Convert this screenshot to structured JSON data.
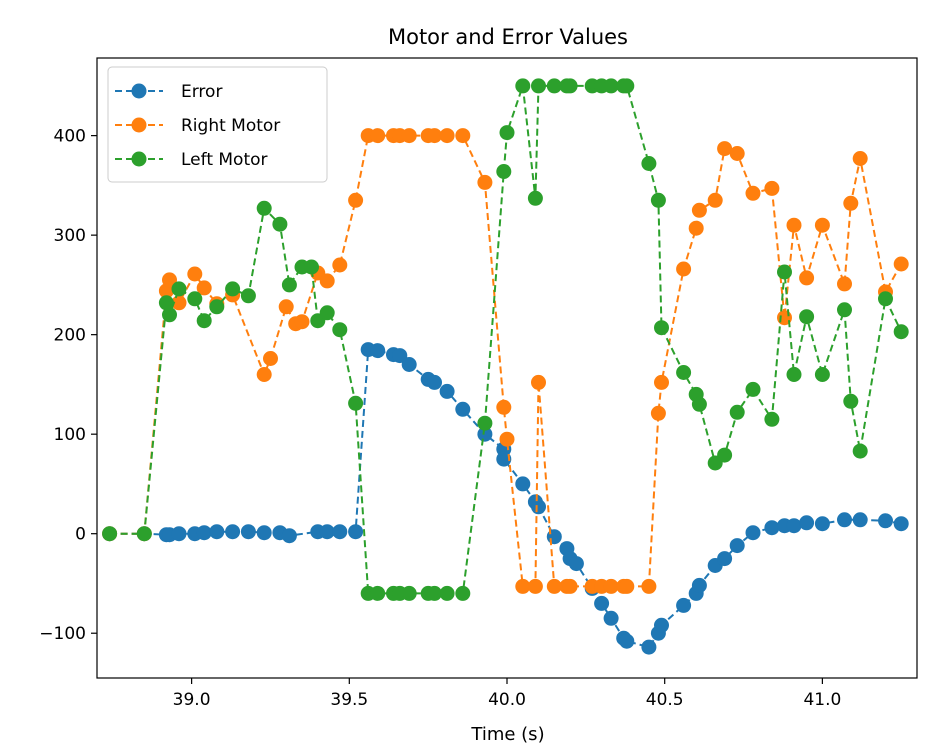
{
  "chart_data": {
    "type": "line",
    "title": "Motor and Error Values",
    "xlabel": "Time (s)",
    "ylabel": "",
    "xlim": [
      38.7,
      41.3
    ],
    "ylim": [
      -145,
      478
    ],
    "xticks": [
      39.0,
      39.5,
      40.0,
      40.5,
      41.0
    ],
    "xtick_labels": [
      "39.0",
      "39.5",
      "40.0",
      "40.5",
      "41.0"
    ],
    "yticks": [
      -100,
      0,
      100,
      200,
      300,
      400
    ],
    "ytick_labels": [
      "−100",
      "0",
      "100",
      "200",
      "300",
      "400"
    ],
    "grid": false,
    "legend_position": "top-left",
    "line_style": "dashed",
    "marker": "circle",
    "series": [
      {
        "name": "Error",
        "color": "#1f77b4",
        "x": [
          38.74,
          38.85,
          38.92,
          38.93,
          38.96,
          39.01,
          39.04,
          39.08,
          39.13,
          39.18,
          39.23,
          39.28,
          39.31,
          39.4,
          39.43,
          39.47,
          39.52,
          39.56,
          39.59,
          39.64,
          39.66,
          39.69,
          39.75,
          39.77,
          39.81,
          39.86,
          39.93,
          39.99,
          39.99,
          40.05,
          40.09,
          40.1,
          40.15,
          40.19,
          40.2,
          40.22,
          40.27,
          40.3,
          40.33,
          40.37,
          40.38,
          40.45,
          40.48,
          40.49,
          40.56,
          40.6,
          40.61,
          40.66,
          40.69,
          40.73,
          40.78,
          40.84,
          40.88,
          40.91,
          40.95,
          41.0,
          41.07,
          41.12,
          41.2,
          41.25
        ],
        "y": [
          0,
          0,
          -1,
          -1,
          0,
          0,
          1,
          2,
          2,
          2,
          1,
          1,
          -2,
          2,
          2,
          2,
          2,
          185,
          184,
          180,
          179,
          170,
          155,
          152,
          143,
          125,
          100,
          85,
          75,
          50,
          32,
          27,
          -3,
          -15,
          -25,
          -30,
          -55,
          -70,
          -85,
          -105,
          -108,
          -114,
          -100,
          -92,
          -72,
          -60,
          -52,
          -32,
          -25,
          -12,
          1,
          6,
          8,
          8,
          11,
          10,
          14,
          14,
          13,
          10
        ]
      },
      {
        "name": "Right Motor",
        "color": "#ff7f0e",
        "x": [
          38.74,
          38.85,
          38.92,
          38.93,
          38.96,
          39.01,
          39.04,
          39.08,
          39.13,
          39.23,
          39.25,
          39.3,
          39.33,
          39.35,
          39.4,
          39.43,
          39.47,
          39.52,
          39.56,
          39.59,
          39.64,
          39.66,
          39.69,
          39.75,
          39.77,
          39.81,
          39.86,
          39.93,
          39.99,
          40.0,
          40.05,
          40.09,
          40.1,
          40.15,
          40.19,
          40.2,
          40.27,
          40.3,
          40.33,
          40.37,
          40.38,
          40.45,
          40.48,
          40.49,
          40.56,
          40.6,
          40.61,
          40.66,
          40.69,
          40.73,
          40.78,
          40.84,
          40.88,
          40.91,
          40.95,
          41.0,
          41.07,
          41.09,
          41.12,
          41.2,
          41.25
        ],
        "y": [
          0,
          0,
          244,
          255,
          232,
          261,
          247,
          231,
          240,
          160,
          176,
          228,
          211,
          213,
          262,
          254,
          270,
          335,
          400,
          400,
          400,
          400,
          400,
          400,
          400,
          400,
          400,
          353,
          127,
          95,
          -53,
          -53,
          152,
          -53,
          -53,
          -53,
          -53,
          -53,
          -53,
          -53,
          -53,
          -53,
          121,
          152,
          266,
          307,
          325,
          335,
          387,
          382,
          342,
          347,
          217,
          310,
          257,
          310,
          251,
          332,
          377,
          243,
          271
        ]
      },
      {
        "name": "Left Motor",
        "color": "#2ca02c",
        "x": [
          38.74,
          38.85,
          38.92,
          38.93,
          38.96,
          39.01,
          39.04,
          39.08,
          39.13,
          39.18,
          39.23,
          39.28,
          39.31,
          39.35,
          39.38,
          39.4,
          39.43,
          39.47,
          39.52,
          39.56,
          39.59,
          39.64,
          39.66,
          39.69,
          39.75,
          39.77,
          39.81,
          39.86,
          39.93,
          39.99,
          40.0,
          40.05,
          40.09,
          40.1,
          40.15,
          40.19,
          40.2,
          40.27,
          40.3,
          40.33,
          40.37,
          40.38,
          40.45,
          40.48,
          40.49,
          40.56,
          40.6,
          40.61,
          40.66,
          40.69,
          40.73,
          40.78,
          40.84,
          40.88,
          40.91,
          40.95,
          41.0,
          41.07,
          41.09,
          41.12,
          41.2,
          41.25
        ],
        "y": [
          0,
          0,
          232,
          220,
          246,
          236,
          214,
          228,
          246,
          239,
          327,
          311,
          250,
          268,
          268,
          214,
          222,
          205,
          131,
          -60,
          -60,
          -60,
          -60,
          -60,
          -60,
          -60,
          -60,
          -60,
          111,
          364,
          403,
          450,
          337,
          450,
          450,
          450,
          450,
          450,
          450,
          450,
          450,
          450,
          372,
          335,
          207,
          162,
          140,
          130,
          71,
          79,
          122,
          145,
          115,
          263,
          160,
          218,
          160,
          225,
          133,
          83,
          236,
          203
        ]
      }
    ]
  }
}
